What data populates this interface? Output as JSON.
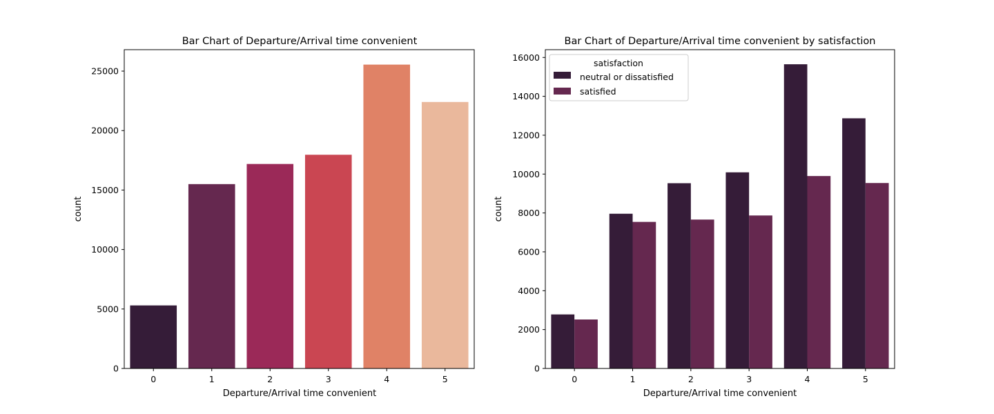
{
  "chart_data": [
    {
      "type": "bar",
      "title": "Bar Chart of Departure/Arrival time convenient",
      "xlabel": "Departure/Arrival time convenient",
      "ylabel": "count",
      "categories": [
        "0",
        "1",
        "2",
        "3",
        "4",
        "5"
      ],
      "values": [
        5300,
        15498,
        17191,
        17966,
        25546,
        22403
      ],
      "colors": [
        "#351c38",
        "#65284f",
        "#9b2958",
        "#ca4652",
        "#e08266",
        "#eab89c"
      ],
      "ylim": [
        0,
        26800
      ],
      "yticks": [
        0,
        5000,
        10000,
        15000,
        20000,
        25000
      ],
      "ytick_labels": [
        "0",
        "5000",
        "10000",
        "15000",
        "20000",
        "25000"
      ],
      "grid": false
    },
    {
      "type": "bar",
      "title": "Bar Chart of Departure/Arrival time convenient by satisfaction",
      "xlabel": "Departure/Arrival time convenient",
      "ylabel": "count",
      "categories": [
        "0",
        "1",
        "2",
        "3",
        "4",
        "5"
      ],
      "series": [
        {
          "name": "neutral or dissatisfied",
          "values": [
            2780,
            7960,
            9530,
            10090,
            15650,
            12870
          ],
          "color": "#351c38"
        },
        {
          "name": "satisfied",
          "values": [
            2520,
            7540,
            7660,
            7870,
            9900,
            9540
          ],
          "color": "#65284f"
        }
      ],
      "legend_title": "satisfaction",
      "legend_loc": "upper left",
      "ylim": [
        0,
        16400
      ],
      "yticks": [
        0,
        2000,
        4000,
        6000,
        8000,
        10000,
        12000,
        14000,
        16000
      ],
      "ytick_labels": [
        "0",
        "2000",
        "4000",
        "6000",
        "8000",
        "10000",
        "12000",
        "14000",
        "16000"
      ],
      "grid": false
    }
  ]
}
